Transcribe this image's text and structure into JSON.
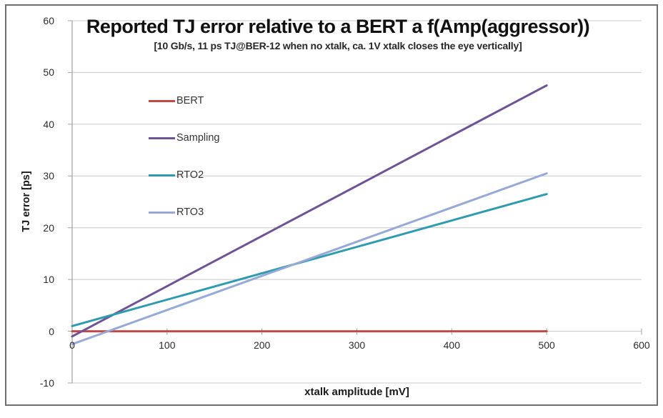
{
  "chart_data": {
    "type": "line",
    "title": "Reported TJ error relative to a BERT a f(Amp(aggressor))",
    "subtitle": "[10 Gb/s, 11 ps TJ@BER-12 when no xtalk, ca. 1V xtalk closes the eye vertically]",
    "xlabel": "xtalk amplitude [mV]",
    "ylabel": "TJ error [ps]",
    "xlim": [
      0,
      600
    ],
    "ylim": [
      -10,
      60
    ],
    "x_ticks": [
      0,
      100,
      200,
      300,
      400,
      500,
      600
    ],
    "y_ticks": [
      -10,
      0,
      10,
      20,
      30,
      40,
      50,
      60
    ],
    "grid": "horizontal",
    "legend_position": "inside-left",
    "series": [
      {
        "name": "BERT",
        "color": "#be4b48",
        "x": [
          0,
          500
        ],
        "y": [
          0,
          0
        ]
      },
      {
        "name": "Sampling",
        "color": "#6e5494",
        "x": [
          0,
          500
        ],
        "y": [
          -1,
          47.5
        ]
      },
      {
        "name": "RTO2",
        "color": "#2f9ab0",
        "x": [
          0,
          500
        ],
        "y": [
          1,
          26.5
        ]
      },
      {
        "name": "RTO3",
        "color": "#97a9d7",
        "x": [
          0,
          500
        ],
        "y": [
          -2.5,
          30.5
        ]
      }
    ],
    "colors": {
      "gridline": "#c8c8c8",
      "axis_line": "#a0a0a0",
      "tick_text": "#2b2b2b"
    }
  }
}
